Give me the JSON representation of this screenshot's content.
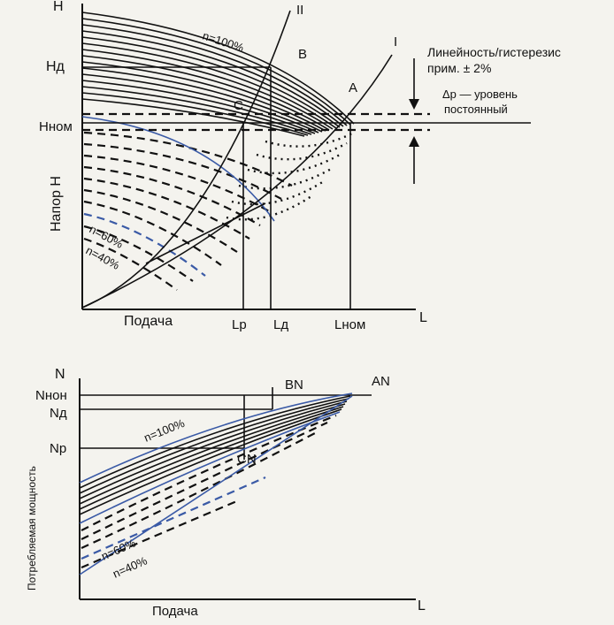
{
  "colors": {
    "ink": "#111111",
    "blue_curve": "#3a5aa6",
    "paper": "#f4f3ee"
  },
  "top_chart": {
    "y_axis_label": "Напор Н",
    "x_axis_label": "Подача",
    "y_axis_end_label": "Н",
    "x_axis_end_label": "L",
    "y_ticks": {
      "hd": "Нд",
      "hnom": "Нном"
    },
    "x_ticks": {
      "lp": "Lр",
      "ld": "Lд",
      "lnom": "Lном"
    },
    "curve_labels": {
      "n100": "n=100%",
      "n60": "n=60%",
      "n40": "n=40%",
      "curve_ii": "II",
      "curve_i": "I"
    },
    "points": {
      "a": "A",
      "b": "B",
      "c": "C"
    },
    "note_linearity": "Линейность/гистерезис",
    "note_approx": "прим. ± 2%",
    "note_delta": "Δр — уровень",
    "note_constant": "постоянный"
  },
  "bottom_chart": {
    "y_axis_label": "Потребляемая мощность",
    "x_axis_label": "Подача",
    "y_axis_end_label": "N",
    "x_axis_end_label": "L",
    "y_ticks": {
      "nnom": "Nнон",
      "nd": "Nд",
      "np": "Nр"
    },
    "curve_labels": {
      "n100": "n=100%",
      "n60": "n=60%",
      "n40": "n=40%"
    },
    "points": {
      "an": "AN",
      "bn": "BN",
      "cn": "CN"
    }
  }
}
